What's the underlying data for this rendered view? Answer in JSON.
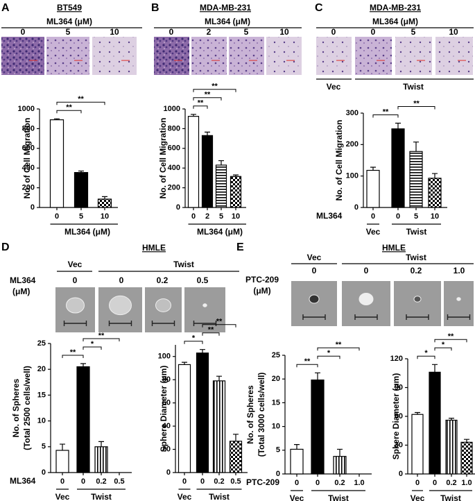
{
  "panels": [
    {
      "letter": "A",
      "title": "BT549",
      "treatment": "ML364 (μM)",
      "image_labels": [
        "0",
        "5",
        "10"
      ]
    },
    {
      "letter": "B",
      "title": "MDA-MB-231",
      "treatment": "ML364 (μM)",
      "image_labels": [
        "0",
        "2",
        "5",
        "10"
      ]
    },
    {
      "letter": "C",
      "title": "MDA-MB-231",
      "treatment": "ML364 (μM)",
      "image_labels": [
        "0",
        "0",
        "5",
        "10"
      ],
      "groups": [
        "Vec",
        "Twist"
      ]
    },
    {
      "letter": "D",
      "title": "HMLE",
      "groups": [
        "Vec",
        "Twist"
      ],
      "treatment": [
        "ML364",
        "(μM)"
      ],
      "image_labels": [
        "0",
        "0",
        "0.2",
        "0.5"
      ]
    },
    {
      "letter": "E",
      "title": "HMLE",
      "groups": [
        "Vec",
        "Twist"
      ],
      "treatment": [
        "PTC-209",
        "(μM)"
      ],
      "image_labels": [
        "0",
        "0",
        "0.2",
        "1.0"
      ]
    }
  ],
  "chart_data": [
    {
      "type": "bar",
      "categories": [
        "0",
        "5",
        "10"
      ],
      "values": [
        890,
        355,
        85
      ],
      "errors": [
        10,
        15,
        25
      ],
      "fills": [
        "white",
        "black",
        "checker"
      ],
      "ylim": [
        0,
        1000
      ],
      "yticks": [
        0,
        200,
        400,
        600,
        800,
        1000
      ],
      "ylabel": [
        "No. of Cell Migration"
      ],
      "xlabel": "ML364 (μM)",
      "brackets": [
        {
          "between": [
            0,
            1
          ],
          "label": "**"
        },
        {
          "between": [
            0,
            2
          ],
          "label": "**"
        }
      ]
    },
    {
      "type": "bar",
      "categories": [
        "0",
        "2",
        "5",
        "10"
      ],
      "values": [
        925,
        730,
        430,
        315
      ],
      "errors": [
        20,
        35,
        45,
        15
      ],
      "fills": [
        "white",
        "black",
        "hstripe",
        "checker"
      ],
      "ylim": [
        0,
        1000
      ],
      "yticks": [
        0,
        200,
        400,
        600,
        800,
        1000
      ],
      "ylabel": [
        "No. of Cell Migration"
      ],
      "xlabel": "ML364 (μM)",
      "brackets": [
        {
          "between": [
            0,
            1
          ],
          "label": "**"
        },
        {
          "between": [
            0,
            2
          ],
          "label": "**"
        },
        {
          "between": [
            0,
            3
          ],
          "label": "**"
        }
      ]
    },
    {
      "type": "bar",
      "categories": [
        "0",
        "0",
        "5",
        "10"
      ],
      "values": [
        118,
        250,
        178,
        93
      ],
      "errors": [
        10,
        18,
        30,
        15
      ],
      "fills": [
        "white",
        "black",
        "hstripe",
        "checker"
      ],
      "ylim": [
        0,
        300
      ],
      "yticks": [
        0,
        100,
        200,
        300
      ],
      "ylabel": [
        "No. of Cell Migration"
      ],
      "x_row_label": "ML364",
      "groups": [
        {
          "name": "Vec",
          "size": 1
        },
        {
          "name": "Twist",
          "size": 3
        }
      ],
      "brackets": [
        {
          "between": [
            0,
            1
          ],
          "label": "**"
        },
        {
          "between": [
            1,
            3
          ],
          "label": "**"
        }
      ]
    },
    {
      "type": "bar",
      "categories": [
        "0",
        "0",
        "0.2",
        "0.5"
      ],
      "values": [
        4.3,
        20.5,
        5.0,
        0
      ],
      "errors": [
        1.2,
        0.6,
        1.0,
        0
      ],
      "fills": [
        "white",
        "black",
        "vstripe",
        "checker"
      ],
      "ylim": [
        0,
        25
      ],
      "yticks": [
        0,
        5,
        10,
        15,
        20,
        25
      ],
      "ylabel": [
        "No. of Spheres",
        "(Total 2500 cells/well)"
      ],
      "x_row_label": "ML364",
      "groups": [
        {
          "name": "Vec",
          "size": 1
        },
        {
          "name": "Twist",
          "size": 3
        }
      ],
      "brackets": [
        {
          "between": [
            0,
            1
          ],
          "label": "**"
        },
        {
          "between": [
            1,
            2
          ],
          "label": "*"
        },
        {
          "between": [
            1,
            3
          ],
          "label": "**"
        }
      ]
    },
    {
      "type": "bar",
      "categories": [
        "0",
        "0",
        "0.2",
        "0.5"
      ],
      "values": [
        93,
        103,
        79,
        27
      ],
      "errors": [
        2,
        3,
        4,
        6
      ],
      "fills": [
        "white",
        "black",
        "vstripe",
        "checker"
      ],
      "ylim": [
        0,
        110
      ],
      "yticks": [
        0,
        20,
        40,
        60,
        80,
        100
      ],
      "ylabel": [
        "Sphere Diameter (μm)"
      ],
      "groups": [
        {
          "name": "Vec",
          "size": 1
        },
        {
          "name": "Twist",
          "size": 3
        }
      ],
      "brackets": [
        {
          "between": [
            0,
            1
          ],
          "label": "*"
        },
        {
          "between": [
            1,
            2
          ],
          "label": "**"
        },
        {
          "between": [
            1,
            3
          ],
          "label": "**"
        }
      ]
    },
    {
      "type": "bar",
      "categories": [
        "0",
        "0",
        "0.2",
        "1.0"
      ],
      "values": [
        5.2,
        19.8,
        3.7,
        0
      ],
      "errors": [
        1.0,
        1.5,
        1.5,
        0
      ],
      "fills": [
        "white",
        "black",
        "vstripe",
        "checker"
      ],
      "ylim": [
        0,
        25
      ],
      "yticks": [
        0,
        5,
        10,
        15,
        20,
        25
      ],
      "ylabel": [
        "No. of Spheres",
        "(Total 3000 cells/well)"
      ],
      "x_row_label": "PTC-209",
      "groups": [
        {
          "name": "Vec",
          "size": 1
        },
        {
          "name": "Twist",
          "size": 3
        }
      ],
      "brackets": [
        {
          "between": [
            0,
            1
          ],
          "label": "**"
        },
        {
          "between": [
            1,
            2
          ],
          "label": "*"
        },
        {
          "between": [
            1,
            3
          ],
          "label": "**"
        }
      ]
    },
    {
      "type": "bar",
      "categories": [
        "0",
        "0",
        "0.2",
        "1.0"
      ],
      "values": [
        62,
        106,
        56,
        33
      ],
      "errors": [
        2,
        8,
        2,
        3
      ],
      "fills": [
        "white",
        "black",
        "vstripe",
        "checker"
      ],
      "ylim": [
        0,
        120
      ],
      "yticks": [
        0,
        30,
        60,
        90,
        120
      ],
      "ylabel": [
        "Sphere Diameter (μm)"
      ],
      "groups": [
        {
          "name": "Vec",
          "size": 1
        },
        {
          "name": "Twist",
          "size": 3
        }
      ],
      "brackets": [
        {
          "between": [
            0,
            1
          ],
          "label": "*"
        },
        {
          "between": [
            1,
            2
          ],
          "label": "*"
        },
        {
          "between": [
            1,
            3
          ],
          "label": "**"
        }
      ]
    }
  ]
}
